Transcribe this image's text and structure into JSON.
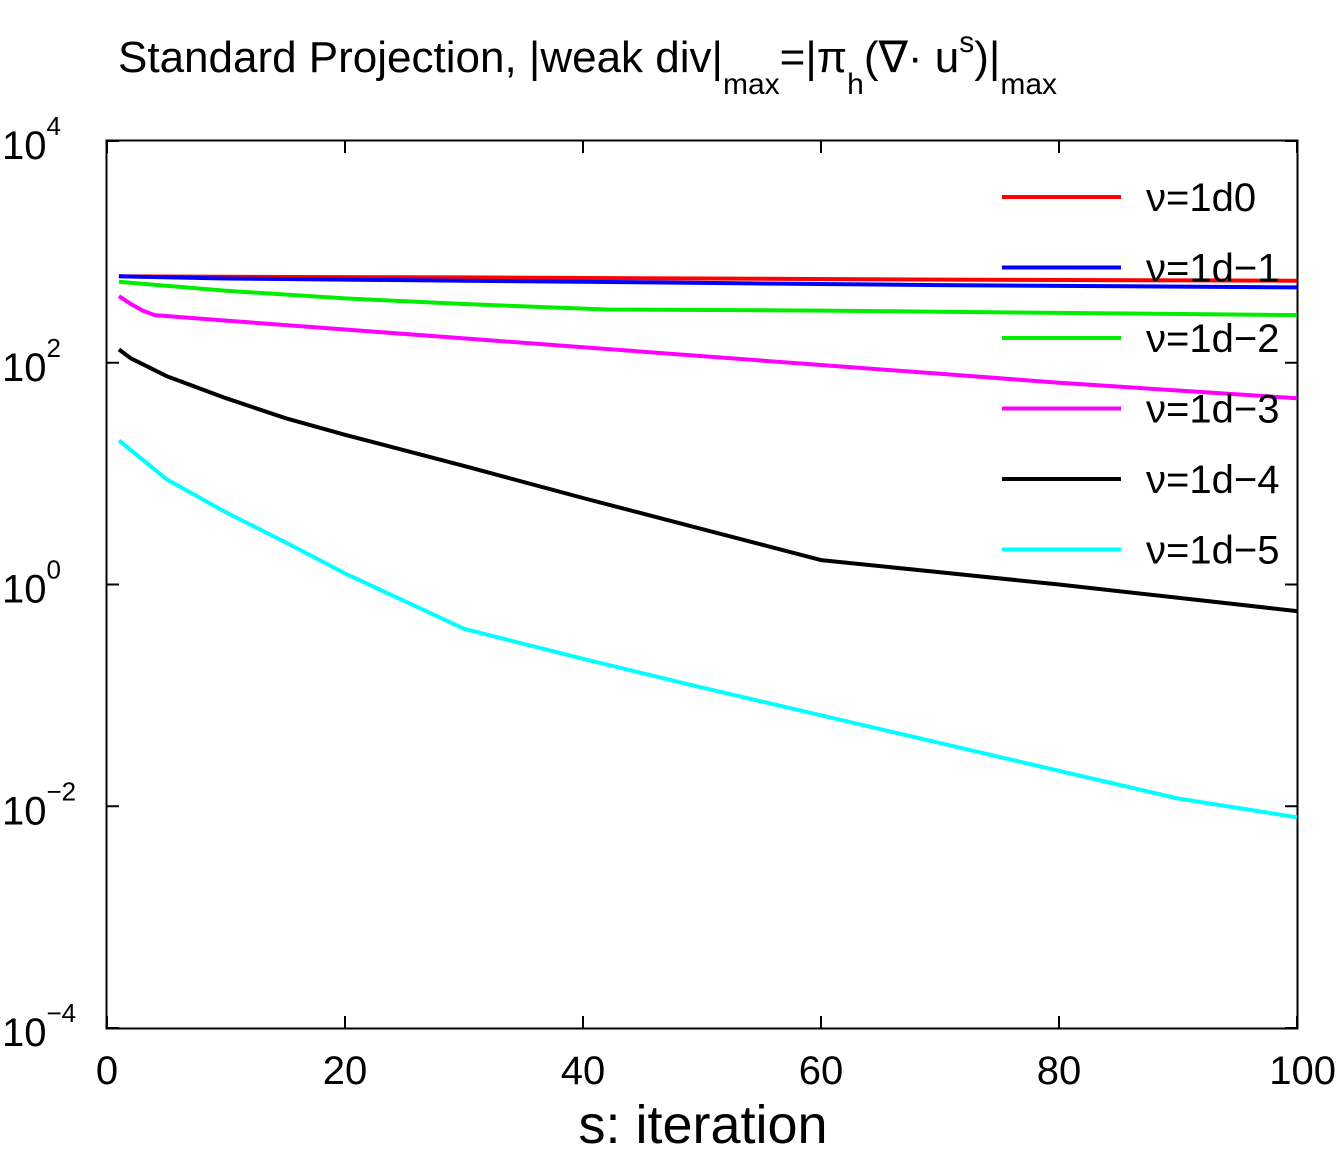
{
  "chart_data": {
    "type": "line",
    "title": {
      "main": "Standard Projection, |weak div|",
      "sub1": "max",
      "eq": "=|π",
      "sub2": "h",
      "paren": "(∇· u",
      "sup": "s",
      "close": ")|",
      "sub3": "max"
    },
    "xlabel": "s: iteration",
    "ylabel": "",
    "xlim": [
      0,
      100
    ],
    "ylim_log10": [
      -4,
      4
    ],
    "y_scale": "log",
    "x_ticks": [
      "0",
      "20",
      "40",
      "60",
      "80",
      "100"
    ],
    "y_ticks": [
      {
        "base": "10",
        "exp": "4"
      },
      {
        "base": "10",
        "exp": "2"
      },
      {
        "base": "10",
        "exp": "0"
      },
      {
        "base": "10",
        "exp": "−2"
      },
      {
        "base": "10",
        "exp": "−4"
      }
    ],
    "legend_position": "top-right",
    "series": [
      {
        "name": "ν=1d0",
        "color": "#ff0000",
        "x": [
          1,
          10,
          30,
          50,
          70,
          100
        ],
        "log10_y": [
          2.78,
          2.775,
          2.77,
          2.76,
          2.75,
          2.74
        ]
      },
      {
        "name": "ν=1d−1",
        "color": "#0000ff",
        "x": [
          1,
          10,
          30,
          50,
          70,
          100
        ],
        "log10_y": [
          2.78,
          2.76,
          2.74,
          2.72,
          2.7,
          2.68
        ]
      },
      {
        "name": "ν=1d−2",
        "color": "#00ee00",
        "x": [
          1,
          10,
          20,
          30,
          42,
          60,
          80,
          100
        ],
        "log10_y": [
          2.73,
          2.65,
          2.58,
          2.53,
          2.48,
          2.47,
          2.45,
          2.43
        ]
      },
      {
        "name": "ν=1d−3",
        "color": "#ff00ff",
        "x": [
          1,
          2,
          3,
          4,
          10,
          20,
          30,
          40,
          50,
          60,
          70,
          80,
          90,
          100
        ],
        "log10_y": [
          2.6,
          2.53,
          2.47,
          2.43,
          2.38,
          2.3,
          2.22,
          2.14,
          2.06,
          1.98,
          1.9,
          1.82,
          1.75,
          1.68
        ]
      },
      {
        "name": "ν=1d−4",
        "color": "#000000",
        "x": [
          1,
          2,
          5,
          10,
          15,
          20,
          30,
          40,
          50,
          60,
          70,
          80,
          90,
          100
        ],
        "log10_y": [
          2.12,
          2.04,
          1.88,
          1.68,
          1.5,
          1.35,
          1.07,
          0.78,
          0.5,
          0.22,
          0.11,
          0.0,
          -0.12,
          -0.24
        ]
      },
      {
        "name": "ν=1d−5",
        "color": "#00ffff",
        "x": [
          1,
          5,
          10,
          15,
          20,
          25,
          30,
          40,
          50,
          60,
          70,
          80,
          90,
          100
        ],
        "log10_y": [
          1.3,
          0.95,
          0.65,
          0.38,
          0.1,
          -0.15,
          -0.4,
          -0.67,
          -0.93,
          -1.18,
          -1.43,
          -1.68,
          -1.93,
          -2.1
        ]
      }
    ]
  }
}
